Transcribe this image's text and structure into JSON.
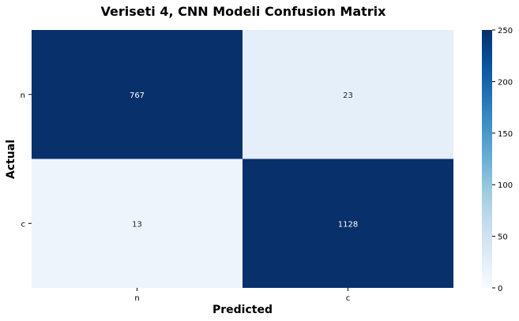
{
  "chart_data": {
    "type": "heatmap",
    "title": "Veriseti 4, CNN Modeli Confusion Matrix",
    "xlabel": "Predicted",
    "ylabel": "Actual",
    "x_categories": [
      "n",
      "c"
    ],
    "y_categories": [
      "n",
      "c"
    ],
    "values": [
      [
        767,
        23
      ],
      [
        13,
        1128
      ]
    ],
    "color_range": [
      0,
      250
    ],
    "colormap": "Blues",
    "colorbar_ticks": [
      0,
      50,
      100,
      150,
      200,
      250
    ],
    "colors": {
      "low": "#f7fbff",
      "high": "#08306b",
      "text_on_dark": "#ffffff",
      "text_on_light": "#262626"
    }
  }
}
